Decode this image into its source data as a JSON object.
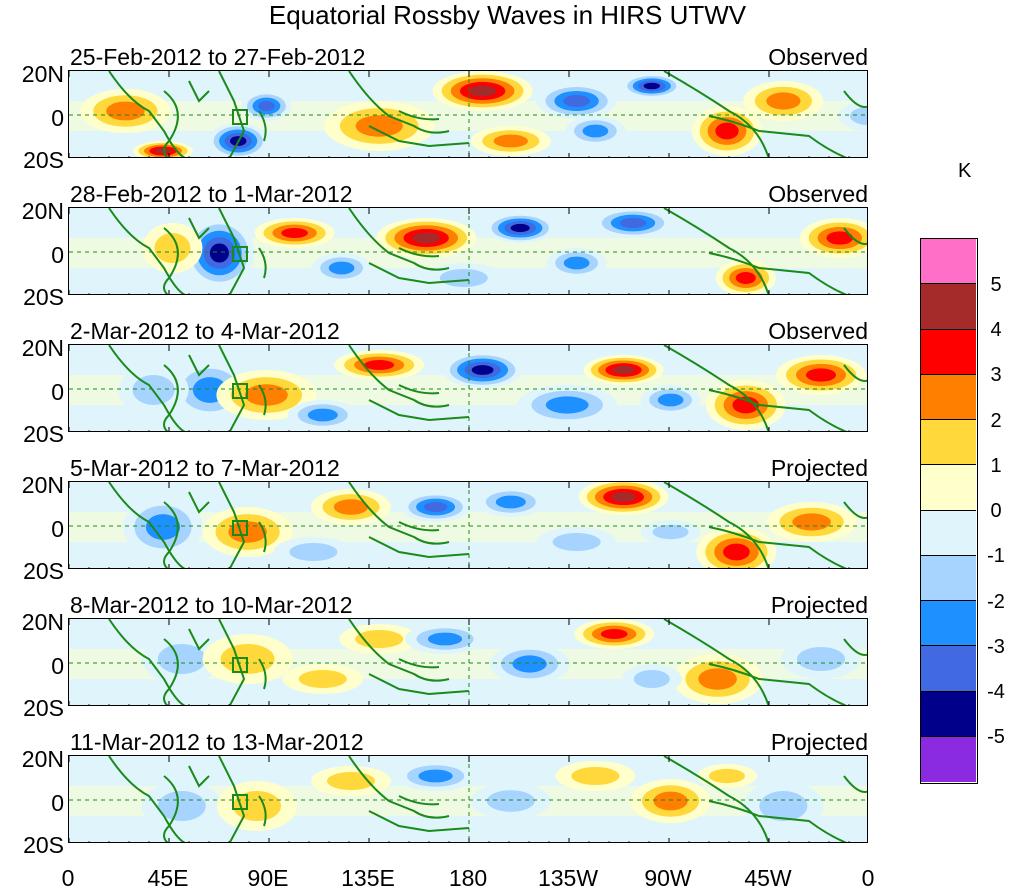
{
  "title": "Equatorial Rossby Waves in HIRS UTWV",
  "units": "K",
  "lat_labels": [
    "20N",
    "0",
    "20S"
  ],
  "lon_labels": [
    "0",
    "45E",
    "90E",
    "135E",
    "180",
    "135W",
    "90W",
    "45W",
    "0"
  ],
  "panels": [
    {
      "dates": "25-Feb-2012 to 27-Feb-2012",
      "status": "Observed"
    },
    {
      "dates": "28-Feb-2012 to 1-Mar-2012",
      "status": "Observed"
    },
    {
      "dates": "2-Mar-2012 to 4-Mar-2012",
      "status": "Observed"
    },
    {
      "dates": "5-Mar-2012 to 7-Mar-2012",
      "status": "Projected"
    },
    {
      "dates": "8-Mar-2012 to 10-Mar-2012",
      "status": "Projected"
    },
    {
      "dates": "11-Mar-2012 to 13-Mar-2012",
      "status": "Projected"
    }
  ],
  "legend": {
    "labels": [
      "5",
      "4",
      "3",
      "2",
      "1",
      "0",
      "-1",
      "-2",
      "-3",
      "-4",
      "-5"
    ],
    "colors": [
      "#ff6ec7",
      "#a52a2a",
      "#ff0000",
      "#ff7f00",
      "#ffd93b",
      "#ffffcc",
      "#dff5fb",
      "#a6d4ff",
      "#1e90ff",
      "#4169e1",
      "#00008b",
      "#8a2be2"
    ]
  }
}
